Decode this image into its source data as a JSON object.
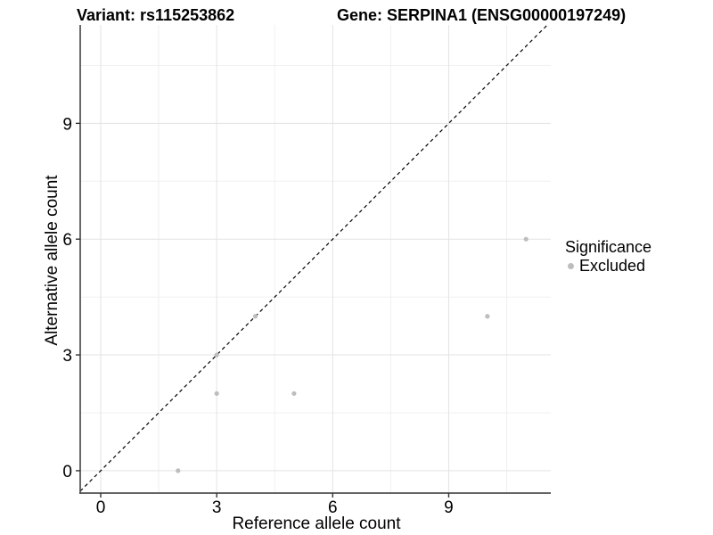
{
  "header": {
    "title_left": "Variant: rs115253862",
    "title_right": "Gene: SERPINA1 (ENSG00000197249)"
  },
  "chart_data": {
    "type": "scatter",
    "title": "Variant: rs115253862  |  Gene: SERPINA1 (ENSG00000197249)",
    "xlabel": "Reference allele count",
    "ylabel": "Alternative allele count",
    "xlim": [
      -0.53,
      11.64
    ],
    "ylim": [
      -0.58,
      11.55
    ],
    "x_ticks": [
      0,
      3,
      6,
      9
    ],
    "y_ticks": [
      0,
      3,
      6,
      9
    ],
    "x_minor_ticks": [
      1.5,
      4.5,
      7.5,
      10.5
    ],
    "y_minor_ticks": [
      1.5,
      4.5,
      7.5,
      10.5
    ],
    "grid": true,
    "identity_line": {
      "slope": 1,
      "intercept": 0,
      "style": "dashed",
      "color": "#000000"
    },
    "series": [
      {
        "name": "Excluded",
        "color": "#bdbdbd",
        "points": [
          [
            2,
            0
          ],
          [
            3,
            2
          ],
          [
            3,
            3
          ],
          [
            4,
            4
          ],
          [
            5,
            2
          ],
          [
            10,
            4
          ],
          [
            11,
            6
          ]
        ]
      }
    ],
    "legend": {
      "position": "right",
      "title": "Significance",
      "entries": [
        {
          "label": "Excluded",
          "color": "#bdbdbd"
        }
      ]
    },
    "colors": {
      "point": "#bdbdbd",
      "grid_major": "#e3e3e3",
      "grid_minor": "#f0f0f0",
      "axis_line": "#4d4d4d",
      "tick_mark": "#333333",
      "tick_label": "#000000"
    }
  }
}
